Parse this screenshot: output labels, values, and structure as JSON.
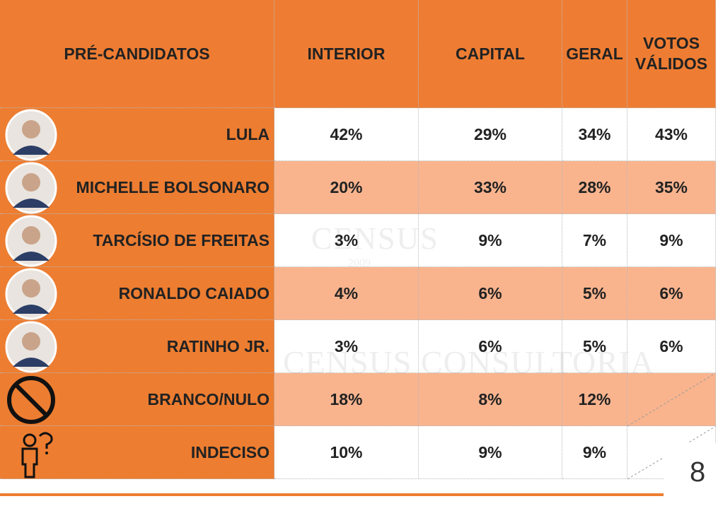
{
  "table": {
    "header": [
      "PRÉ-CANDIDATOS",
      "INTERIOR",
      "CAPITAL",
      "GERAL",
      "VOTOS VÁLIDOS"
    ],
    "rows": [
      {
        "name": "LULA",
        "values": [
          "42%",
          "29%",
          "34%",
          "43%"
        ]
      },
      {
        "name": "MICHELLE BOLSONARO",
        "values": [
          "20%",
          "33%",
          "28%",
          "35%"
        ]
      },
      {
        "name": "TARCÍSIO DE FREITAS",
        "values": [
          "3%",
          "9%",
          "7%",
          "9%"
        ]
      },
      {
        "name": "RONALDO CAIADO",
        "values": [
          "4%",
          "6%",
          "5%",
          "6%"
        ]
      },
      {
        "name": "RATINHO JR.",
        "values": [
          "3%",
          "6%",
          "5%",
          "6%"
        ]
      },
      {
        "name": "BRANCO/NULO",
        "values": [
          "18%",
          "8%",
          "12%"
        ]
      },
      {
        "name": "INDECISO",
        "values": [
          "10%",
          "9%",
          "9%"
        ]
      }
    ]
  },
  "watermark": {
    "brand": "CENSUS",
    "year": "2009",
    "full": "CENSUS CONSULTORIA"
  },
  "page_number": "8"
}
